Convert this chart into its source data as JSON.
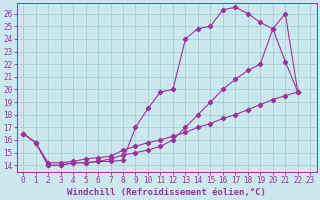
{
  "bg_color": "#cce8ee",
  "line_color": "#993399",
  "grid_color": "#99cccc",
  "xlabel": "Windchill (Refroidissement éolien,°C)",
  "xlabel_fontsize": 6.5,
  "tick_fontsize": 5.5,
  "xlim": [
    -0.5,
    23.5
  ],
  "ylim": [
    13.5,
    26.8
  ],
  "yticks": [
    14,
    15,
    16,
    17,
    18,
    19,
    20,
    21,
    22,
    23,
    24,
    25,
    26
  ],
  "xticks": [
    0,
    1,
    2,
    3,
    4,
    5,
    6,
    7,
    8,
    9,
    10,
    11,
    12,
    13,
    14,
    15,
    16,
    17,
    18,
    19,
    20,
    21,
    22,
    23
  ],
  "line1_x": [
    0,
    1,
    2,
    3,
    4,
    5,
    6,
    7,
    8,
    9,
    10,
    11,
    12,
    13,
    14,
    15,
    16,
    17,
    18,
    19,
    20,
    21,
    22
  ],
  "line1_y": [
    16.5,
    15.8,
    14.0,
    14.0,
    14.2,
    14.2,
    14.3,
    14.3,
    14.4,
    17.0,
    18.5,
    19.8,
    20.0,
    24.0,
    24.8,
    25.0,
    26.3,
    26.5,
    26.0,
    25.3,
    24.8,
    22.2,
    19.8
  ],
  "line2_x": [
    0,
    1,
    2,
    3,
    4,
    5,
    6,
    7,
    8,
    9,
    10,
    11,
    12,
    13,
    14,
    15,
    16,
    17,
    18,
    19,
    20,
    21,
    22
  ],
  "line2_y": [
    16.5,
    15.8,
    14.0,
    14.0,
    14.2,
    14.2,
    14.3,
    14.5,
    14.8,
    15.0,
    15.2,
    15.5,
    16.0,
    17.0,
    18.0,
    19.0,
    20.0,
    20.8,
    21.5,
    22.0,
    24.8,
    26.0,
    19.8
  ],
  "line3_x": [
    0,
    1,
    2,
    3,
    4,
    5,
    6,
    7,
    8,
    9,
    10,
    11,
    12,
    13,
    14,
    15,
    16,
    17,
    18,
    19,
    20,
    21,
    22
  ],
  "line3_y": [
    16.5,
    15.8,
    14.2,
    14.2,
    14.3,
    14.5,
    14.6,
    14.7,
    15.2,
    15.5,
    15.8,
    16.0,
    16.3,
    16.6,
    17.0,
    17.3,
    17.7,
    18.0,
    18.4,
    18.8,
    19.2,
    19.5,
    19.8
  ]
}
